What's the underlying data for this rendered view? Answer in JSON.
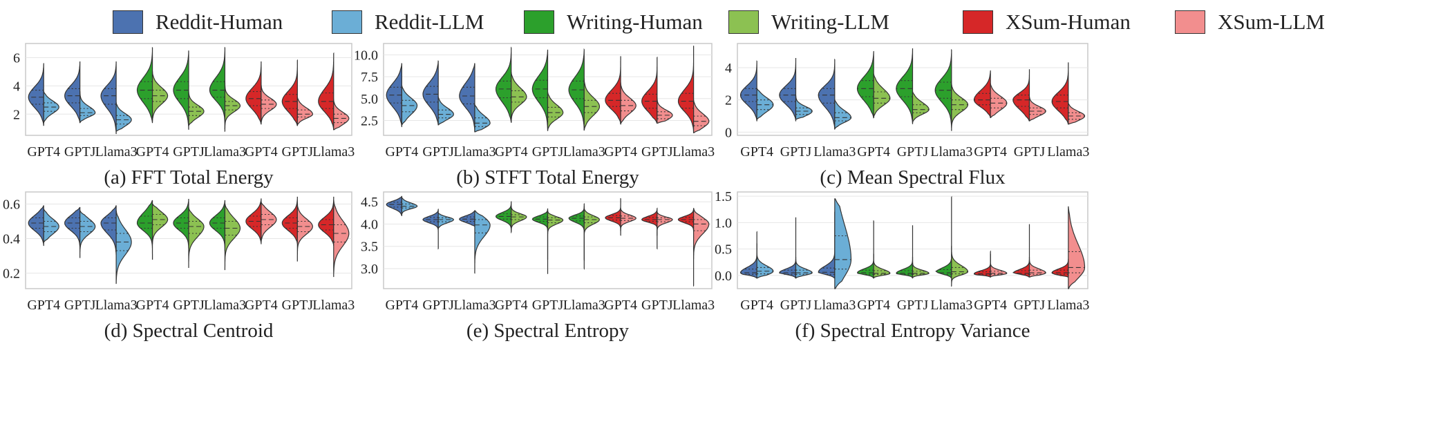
{
  "legend": [
    {
      "label": "Reddit-Human",
      "color": "#4c72b0"
    },
    {
      "label": "Reddit-LLM",
      "color": "#6baed6"
    },
    {
      "label": "Writing-Human",
      "color": "#2ca02c"
    },
    {
      "label": "Writing-LLM",
      "color": "#8cc152"
    },
    {
      "label": "XSum-Human",
      "color": "#d62728"
    },
    {
      "label": "XSum-LLM",
      "color": "#f28e8e"
    }
  ],
  "chart_data": [
    {
      "type": "violin",
      "caption": "(a) FFT Total Energy",
      "categories": [
        "GPT4",
        "GPTJ",
        "Llama3",
        "GPT4",
        "GPTJ",
        "Llama3",
        "GPT4",
        "GPTJ",
        "Llama3"
      ],
      "ylim": [
        0.5,
        7.0
      ],
      "yticks": [
        "2",
        "4",
        "6"
      ],
      "ytick_values": [
        2,
        4,
        6
      ],
      "human": [
        {
          "min": 1.2,
          "q1": 2.7,
          "med": 3.2,
          "q3": 3.7,
          "max": 5.6
        },
        {
          "min": 1.4,
          "q1": 2.8,
          "med": 3.3,
          "q3": 3.8,
          "max": 5.7
        },
        {
          "min": 0.6,
          "q1": 2.7,
          "med": 3.3,
          "q3": 3.8,
          "max": 5.7
        },
        {
          "min": 1.4,
          "q1": 3.1,
          "med": 3.7,
          "q3": 4.3,
          "max": 6.7
        },
        {
          "min": 0.9,
          "q1": 3.1,
          "med": 3.7,
          "q3": 4.3,
          "max": 6.5
        },
        {
          "min": 0.8,
          "q1": 3.2,
          "med": 3.7,
          "q3": 4.3,
          "max": 6.7
        },
        {
          "min": 1.3,
          "q1": 2.6,
          "med": 3.1,
          "q3": 3.6,
          "max": 5.7
        },
        {
          "min": 1.2,
          "q1": 2.4,
          "med": 2.9,
          "q3": 3.4,
          "max": 5.8
        },
        {
          "min": 0.9,
          "q1": 2.4,
          "med": 2.9,
          "q3": 3.5,
          "max": 6.3
        }
      ],
      "llm": [
        {
          "min": 1.4,
          "q1": 2.2,
          "med": 2.5,
          "q3": 2.8,
          "max": 3.6
        },
        {
          "min": 1.4,
          "q1": 1.9,
          "med": 2.1,
          "q3": 2.4,
          "max": 3.6
        },
        {
          "min": 0.8,
          "q1": 1.3,
          "med": 1.6,
          "q3": 1.9,
          "max": 2.8
        },
        {
          "min": 1.5,
          "q1": 2.9,
          "med": 3.3,
          "q3": 3.7,
          "max": 5.0
        },
        {
          "min": 1.2,
          "q1": 1.9,
          "med": 2.2,
          "q3": 2.5,
          "max": 3.6
        },
        {
          "min": 1.0,
          "q1": 2.3,
          "med": 2.6,
          "q3": 2.9,
          "max": 4.3
        },
        {
          "min": 1.3,
          "q1": 2.4,
          "med": 2.7,
          "q3": 3.0,
          "max": 4.2
        },
        {
          "min": 1.2,
          "q1": 1.8,
          "med": 2.0,
          "q3": 2.3,
          "max": 3.2
        },
        {
          "min": 0.9,
          "q1": 1.4,
          "med": 1.7,
          "q3": 2.0,
          "max": 3.0
        }
      ]
    },
    {
      "type": "violin",
      "caption": "(b) STFT Total Energy",
      "categories": [
        "GPT4",
        "GPTJ",
        "Llama3",
        "GPT4",
        "GPTJ",
        "Llama3",
        "GPT4",
        "GPTJ",
        "Llama3"
      ],
      "ylim": [
        0.8,
        11.3
      ],
      "yticks": [
        "2.5",
        "5.0",
        "7.5",
        "10.0"
      ],
      "ytick_values": [
        2.5,
        5.0,
        7.5,
        10.0
      ],
      "human": [
        {
          "min": 1.8,
          "q1": 4.5,
          "med": 5.4,
          "q3": 6.3,
          "max": 9.0
        },
        {
          "min": 2.0,
          "q1": 4.6,
          "med": 5.5,
          "q3": 6.4,
          "max": 9.3
        },
        {
          "min": 1.3,
          "q1": 4.4,
          "med": 5.3,
          "q3": 6.3,
          "max": 9.0
        },
        {
          "min": 2.3,
          "q1": 5.1,
          "med": 6.1,
          "q3": 7.0,
          "max": 10.8
        },
        {
          "min": 1.3,
          "q1": 5.1,
          "med": 6.1,
          "q3": 7.1,
          "max": 10.6
        },
        {
          "min": 1.4,
          "q1": 5.0,
          "med": 6.0,
          "q3": 7.0,
          "max": 10.6
        },
        {
          "min": 2.1,
          "q1": 4.1,
          "med": 4.8,
          "q3": 5.6,
          "max": 9.8
        },
        {
          "min": 2.2,
          "q1": 3.9,
          "med": 4.7,
          "q3": 5.5,
          "max": 9.7
        },
        {
          "min": 1.1,
          "q1": 3.9,
          "med": 4.7,
          "q3": 5.6,
          "max": 11.0
        }
      ],
      "llm": [
        {
          "min": 2.0,
          "q1": 3.5,
          "med": 4.2,
          "q3": 4.8,
          "max": 6.5
        },
        {
          "min": 2.0,
          "q1": 2.8,
          "med": 3.2,
          "q3": 3.7,
          "max": 5.2
        },
        {
          "min": 1.2,
          "q1": 1.8,
          "med": 2.2,
          "q3": 2.8,
          "max": 4.3
        },
        {
          "min": 2.3,
          "q1": 4.6,
          "med": 5.2,
          "q3": 5.9,
          "max": 8.0
        },
        {
          "min": 1.4,
          "q1": 2.9,
          "med": 3.4,
          "q3": 4.0,
          "max": 5.7
        },
        {
          "min": 1.4,
          "q1": 3.4,
          "med": 4.1,
          "q3": 4.8,
          "max": 7.2
        },
        {
          "min": 2.1,
          "q1": 3.6,
          "med": 4.2,
          "q3": 4.8,
          "max": 6.8
        },
        {
          "min": 2.2,
          "q1": 2.7,
          "med": 3.1,
          "q3": 3.5,
          "max": 5.1
        },
        {
          "min": 1.1,
          "q1": 1.9,
          "med": 2.4,
          "q3": 3.0,
          "max": 4.8
        }
      ]
    },
    {
      "type": "violin",
      "caption": "(c) Mean Spectral Flux",
      "categories": [
        "GPT4",
        "GPTJ",
        "Llama3",
        "GPT4",
        "GPTJ",
        "Llama3",
        "GPT4",
        "GPTJ",
        "Llama3"
      ],
      "ylim": [
        -0.2,
        5.5
      ],
      "yticks": [
        "0",
        "2",
        "4"
      ],
      "ytick_values": [
        0,
        2,
        4
      ],
      "human": [
        {
          "min": 0.7,
          "q1": 1.9,
          "med": 2.3,
          "q3": 2.7,
          "max": 4.4
        },
        {
          "min": 0.7,
          "q1": 1.9,
          "med": 2.3,
          "q3": 2.7,
          "max": 4.6
        },
        {
          "min": 0.2,
          "q1": 1.8,
          "med": 2.3,
          "q3": 2.7,
          "max": 4.5
        },
        {
          "min": 0.9,
          "q1": 2.2,
          "med": 2.7,
          "q3": 3.2,
          "max": 5.0
        },
        {
          "min": 0.5,
          "q1": 2.2,
          "med": 2.7,
          "q3": 3.2,
          "max": 5.2
        },
        {
          "min": 0.1,
          "q1": 2.1,
          "med": 2.6,
          "q3": 3.1,
          "max": 5.1
        },
        {
          "min": 0.9,
          "q1": 1.7,
          "med": 2.0,
          "q3": 2.4,
          "max": 3.8
        },
        {
          "min": 0.7,
          "q1": 1.6,
          "med": 2.0,
          "q3": 2.3,
          "max": 3.9
        },
        {
          "min": 0.5,
          "q1": 1.5,
          "med": 1.9,
          "q3": 2.3,
          "max": 4.3
        }
      ],
      "llm": [
        {
          "min": 0.8,
          "q1": 1.4,
          "med": 1.7,
          "q3": 2.0,
          "max": 2.7
        },
        {
          "min": 0.8,
          "q1": 1.1,
          "med": 1.3,
          "q3": 1.5,
          "max": 2.3
        },
        {
          "min": 0.2,
          "q1": 0.7,
          "med": 0.9,
          "q3": 1.2,
          "max": 2.0
        },
        {
          "min": 0.9,
          "q1": 1.8,
          "med": 2.1,
          "q3": 2.5,
          "max": 3.6
        },
        {
          "min": 0.6,
          "q1": 1.2,
          "med": 1.4,
          "q3": 1.7,
          "max": 2.5
        },
        {
          "min": 0.3,
          "q1": 1.4,
          "med": 1.7,
          "q3": 2.0,
          "max": 3.0
        },
        {
          "min": 0.9,
          "q1": 1.5,
          "med": 1.8,
          "q3": 2.1,
          "max": 3.0
        },
        {
          "min": 0.7,
          "q1": 1.1,
          "med": 1.3,
          "q3": 1.5,
          "max": 2.2
        },
        {
          "min": 0.5,
          "q1": 0.8,
          "med": 1.0,
          "q3": 1.2,
          "max": 1.8
        }
      ]
    },
    {
      "type": "violin",
      "caption": "(d) Spectral Centroid",
      "categories": [
        "GPT4",
        "GPTJ",
        "Llama3",
        "GPT4",
        "GPTJ",
        "Llama3",
        "GPT4",
        "GPTJ",
        "Llama3"
      ],
      "ylim": [
        0.11,
        0.67
      ],
      "yticks": [
        "0.2",
        "0.4",
        "0.6"
      ],
      "ytick_values": [
        0.2,
        0.4,
        0.6
      ],
      "human": [
        {
          "min": 0.36,
          "q1": 0.46,
          "med": 0.49,
          "q3": 0.52,
          "max": 0.59
        },
        {
          "min": 0.34,
          "q1": 0.46,
          "med": 0.49,
          "q3": 0.52,
          "max": 0.58
        },
        {
          "min": 0.3,
          "q1": 0.45,
          "med": 0.49,
          "q3": 0.52,
          "max": 0.59
        },
        {
          "min": 0.28,
          "q1": 0.46,
          "med": 0.49,
          "q3": 0.53,
          "max": 0.62
        },
        {
          "min": 0.34,
          "q1": 0.46,
          "med": 0.49,
          "q3": 0.52,
          "max": 0.63
        },
        {
          "min": 0.33,
          "q1": 0.46,
          "med": 0.49,
          "q3": 0.52,
          "max": 0.62
        },
        {
          "min": 0.37,
          "q1": 0.47,
          "med": 0.5,
          "q3": 0.53,
          "max": 0.63
        },
        {
          "min": 0.37,
          "q1": 0.46,
          "med": 0.49,
          "q3": 0.52,
          "max": 0.64
        },
        {
          "min": 0.36,
          "q1": 0.45,
          "med": 0.48,
          "q3": 0.51,
          "max": 0.64
        }
      ],
      "llm": [
        {
          "min": 0.38,
          "q1": 0.44,
          "med": 0.47,
          "q3": 0.5,
          "max": 0.57
        },
        {
          "min": 0.29,
          "q1": 0.44,
          "med": 0.47,
          "q3": 0.5,
          "max": 0.56
        },
        {
          "min": 0.14,
          "q1": 0.33,
          "med": 0.38,
          "q3": 0.43,
          "max": 0.56
        },
        {
          "min": 0.37,
          "q1": 0.48,
          "med": 0.51,
          "q3": 0.54,
          "max": 0.6
        },
        {
          "min": 0.23,
          "q1": 0.43,
          "med": 0.47,
          "q3": 0.5,
          "max": 0.58
        },
        {
          "min": 0.22,
          "q1": 0.42,
          "med": 0.46,
          "q3": 0.5,
          "max": 0.6
        },
        {
          "min": 0.38,
          "q1": 0.48,
          "med": 0.51,
          "q3": 0.54,
          "max": 0.61
        },
        {
          "min": 0.27,
          "q1": 0.44,
          "med": 0.47,
          "q3": 0.5,
          "max": 0.6
        },
        {
          "min": 0.18,
          "q1": 0.38,
          "med": 0.43,
          "q3": 0.48,
          "max": 0.62
        }
      ]
    },
    {
      "type": "violin",
      "caption": "(e) Spectral Entropy",
      "categories": [
        "GPT4",
        "GPTJ",
        "Llama3",
        "GPT4",
        "GPTJ",
        "Llama3",
        "GPT4",
        "GPTJ",
        "Llama3"
      ],
      "ylim": [
        2.55,
        4.72
      ],
      "yticks": [
        "3.0",
        "3.5",
        "4.0",
        "4.5"
      ],
      "ytick_values": [
        3.0,
        3.5,
        4.0,
        4.5
      ],
      "human": [
        {
          "min": 4.18,
          "q1": 4.38,
          "med": 4.44,
          "q3": 4.49,
          "max": 4.62
        },
        {
          "min": 3.45,
          "q1": 4.05,
          "med": 4.1,
          "q3": 4.15,
          "max": 4.33
        },
        {
          "min": 3.95,
          "q1": 4.06,
          "med": 4.11,
          "q3": 4.16,
          "max": 4.3
        },
        {
          "min": 3.82,
          "q1": 4.11,
          "med": 4.17,
          "q3": 4.23,
          "max": 4.5
        },
        {
          "min": 2.88,
          "q1": 4.06,
          "med": 4.11,
          "q3": 4.16,
          "max": 4.35
        },
        {
          "min": 3.2,
          "q1": 4.07,
          "med": 4.13,
          "q3": 4.18,
          "max": 4.45
        },
        {
          "min": 3.75,
          "q1": 4.09,
          "med": 4.14,
          "q3": 4.19,
          "max": 4.57
        },
        {
          "min": 3.45,
          "q1": 4.06,
          "med": 4.1,
          "q3": 4.15,
          "max": 4.35
        },
        {
          "min": 3.7,
          "q1": 4.05,
          "med": 4.1,
          "q3": 4.15,
          "max": 4.35
        }
      ],
      "llm": [
        {
          "min": 4.2,
          "q1": 4.36,
          "med": 4.4,
          "q3": 4.45,
          "max": 4.6
        },
        {
          "min": 3.9,
          "q1": 4.05,
          "med": 4.1,
          "q3": 4.14,
          "max": 4.25
        },
        {
          "min": 2.9,
          "q1": 3.8,
          "med": 3.98,
          "q3": 4.1,
          "max": 4.3
        },
        {
          "min": 3.85,
          "q1": 4.1,
          "med": 4.16,
          "q3": 4.21,
          "max": 4.4
        },
        {
          "min": 3.2,
          "q1": 4.03,
          "med": 4.09,
          "q3": 4.14,
          "max": 4.3
        },
        {
          "min": 3.0,
          "q1": 4.03,
          "med": 4.1,
          "q3": 4.16,
          "max": 4.4
        },
        {
          "min": 3.85,
          "q1": 4.08,
          "med": 4.13,
          "q3": 4.18,
          "max": 4.35
        },
        {
          "min": 3.75,
          "q1": 4.05,
          "med": 4.1,
          "q3": 4.14,
          "max": 4.28
        },
        {
          "min": 2.62,
          "q1": 3.85,
          "med": 4.0,
          "q3": 4.1,
          "max": 4.35
        }
      ]
    },
    {
      "type": "violin",
      "caption": "(f) Spectral Entropy Variance",
      "categories": [
        "GPT4",
        "GPTJ",
        "Llama3",
        "GPT4",
        "GPTJ",
        "Llama3",
        "GPT4",
        "GPTJ",
        "Llama3"
      ],
      "ylim": [
        -0.25,
        1.58
      ],
      "yticks": [
        "0.0",
        "0.5",
        "1.0",
        "1.5"
      ],
      "ytick_values": [
        0.0,
        0.5,
        1.0,
        1.5
      ],
      "human": [
        {
          "min": -0.05,
          "q1": 0.02,
          "med": 0.05,
          "q3": 0.12,
          "max": 0.82
        },
        {
          "min": -0.05,
          "q1": 0.02,
          "med": 0.05,
          "q3": 0.1,
          "max": 1.1
        },
        {
          "min": -0.05,
          "q1": 0.02,
          "med": 0.06,
          "q3": 0.14,
          "max": 1.2
        },
        {
          "min": -0.05,
          "q1": 0.02,
          "med": 0.05,
          "q3": 0.1,
          "max": 1.03
        },
        {
          "min": -0.05,
          "q1": 0.02,
          "med": 0.04,
          "q3": 0.09,
          "max": 0.95
        },
        {
          "min": -0.05,
          "q1": 0.02,
          "med": 0.05,
          "q3": 0.11,
          "max": 1.48
        },
        {
          "min": -0.03,
          "q1": 0.01,
          "med": 0.03,
          "q3": 0.07,
          "max": 0.45
        },
        {
          "min": -0.03,
          "q1": 0.02,
          "med": 0.04,
          "q3": 0.09,
          "max": 0.97
        },
        {
          "min": -0.03,
          "q1": 0.02,
          "med": 0.05,
          "q3": 0.1,
          "max": 0.3
        }
      ],
      "llm": [
        {
          "min": -0.05,
          "q1": 0.03,
          "med": 0.08,
          "q3": 0.15,
          "max": 0.6
        },
        {
          "min": -0.05,
          "q1": 0.02,
          "med": 0.05,
          "q3": 0.1,
          "max": 0.35
        },
        {
          "min": -0.25,
          "q1": 0.12,
          "med": 0.3,
          "q3": 0.75,
          "max": 1.45
        },
        {
          "min": -0.05,
          "q1": 0.02,
          "med": 0.04,
          "q3": 0.09,
          "max": 0.4
        },
        {
          "min": -0.05,
          "q1": 0.02,
          "med": 0.04,
          "q3": 0.08,
          "max": 0.35
        },
        {
          "min": -0.2,
          "q1": 0.03,
          "med": 0.07,
          "q3": 0.15,
          "max": 0.55
        },
        {
          "min": -0.03,
          "q1": 0.02,
          "med": 0.04,
          "q3": 0.08,
          "max": 0.4
        },
        {
          "min": -0.03,
          "q1": 0.02,
          "med": 0.05,
          "q3": 0.1,
          "max": 0.35
        },
        {
          "min": -0.25,
          "q1": 0.05,
          "med": 0.15,
          "q3": 0.45,
          "max": 1.3
        }
      ]
    }
  ]
}
